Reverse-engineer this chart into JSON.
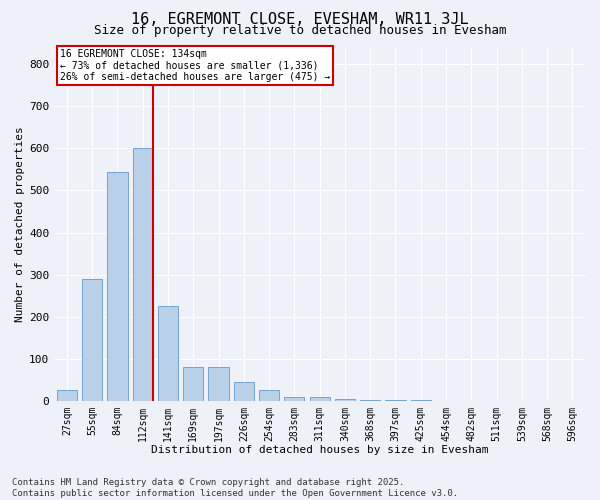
{
  "title": "16, EGREMONT CLOSE, EVESHAM, WR11 3JL",
  "subtitle": "Size of property relative to detached houses in Evesham",
  "xlabel": "Distribution of detached houses by size in Evesham",
  "ylabel": "Number of detached properties",
  "categories": [
    "27sqm",
    "55sqm",
    "84sqm",
    "112sqm",
    "141sqm",
    "169sqm",
    "197sqm",
    "226sqm",
    "254sqm",
    "283sqm",
    "311sqm",
    "340sqm",
    "368sqm",
    "397sqm",
    "425sqm",
    "454sqm",
    "482sqm",
    "511sqm",
    "539sqm",
    "568sqm",
    "596sqm"
  ],
  "values": [
    25,
    290,
    545,
    600,
    225,
    80,
    80,
    45,
    25,
    10,
    10,
    5,
    2,
    1,
    1,
    0,
    0,
    0,
    0,
    0,
    0
  ],
  "bar_color": "#b8d0e8",
  "bar_edge_color": "#6699cc",
  "vline_color": "#cc0000",
  "annotation_title": "16 EGREMONT CLOSE: 134sqm",
  "annotation_line1": "← 73% of detached houses are smaller (1,336)",
  "annotation_line2": "26% of semi-detached houses are larger (475) →",
  "annotation_box_color": "#ffffff",
  "annotation_box_edge_color": "#cc0000",
  "footer_line1": "Contains HM Land Registry data © Crown copyright and database right 2025.",
  "footer_line2": "Contains public sector information licensed under the Open Government Licence v3.0.",
  "background_color": "#eef2f8",
  "plot_background_color": "#eef2f8",
  "ylim": [
    0,
    840
  ],
  "yticks": [
    0,
    100,
    200,
    300,
    400,
    500,
    600,
    700,
    800
  ],
  "title_fontsize": 11,
  "subtitle_fontsize": 9,
  "axis_label_fontsize": 8,
  "tick_fontsize": 7,
  "footer_fontsize": 6.5
}
